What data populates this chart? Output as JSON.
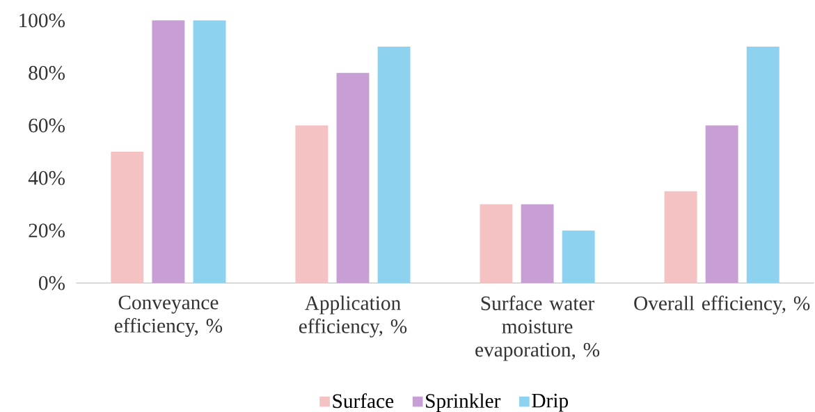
{
  "chart_data": {
    "type": "bar",
    "categories": [
      "Conveyance efficiency, %",
      "Application efficiency, %",
      "Surface water moisture evaporation, %",
      "Overall efficiency, %"
    ],
    "series": [
      {
        "name": "Surface",
        "color": "#f4c2c2",
        "values": [
          50,
          60,
          30,
          35
        ]
      },
      {
        "name": "Sprinkler",
        "color": "#c89fd4",
        "values": [
          100,
          80,
          30,
          60
        ]
      },
      {
        "name": "Drip",
        "color": "#8dd3f0",
        "values": [
          100,
          90,
          20,
          90
        ]
      }
    ],
    "ylim": [
      0,
      100
    ],
    "yticks": [
      {
        "value": 0,
        "label": "0%"
      },
      {
        "value": 20,
        "label": "20%"
      },
      {
        "value": 40,
        "label": "40%"
      },
      {
        "value": 60,
        "label": "60%"
      },
      {
        "value": 80,
        "label": "80%"
      },
      {
        "value": 100,
        "label": "100%"
      }
    ],
    "legend": "bottom"
  }
}
